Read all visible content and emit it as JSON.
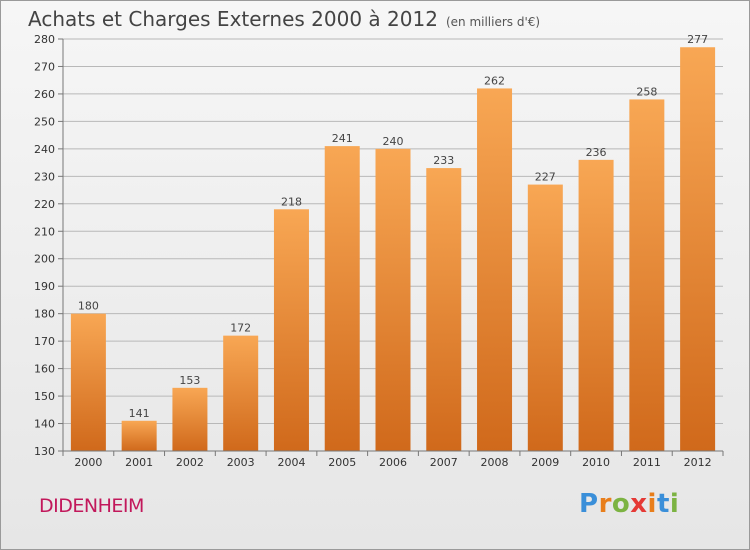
{
  "header": {
    "title": "Achats et Charges Externes 2000 à 2012",
    "subtitle": "(en milliers d'€)"
  },
  "footer": {
    "location": "DIDENHEIM",
    "logo_text": "Proxiti"
  },
  "colors": {
    "bar_light": "#f8a754",
    "bar_dark": "#d0691b",
    "grid": "#b8b8b8",
    "location": "#c2185b"
  },
  "chart_data": {
    "type": "bar",
    "title": "Achats et Charges Externes 2000 à 2012",
    "subtitle": "(en milliers d'€)",
    "xlabel": "",
    "ylabel": "",
    "categories": [
      "2000",
      "2001",
      "2002",
      "2003",
      "2004",
      "2005",
      "2006",
      "2007",
      "2008",
      "2009",
      "2010",
      "2011",
      "2012"
    ],
    "values": [
      180,
      141,
      153,
      172,
      218,
      241,
      240,
      233,
      262,
      227,
      236,
      258,
      277
    ],
    "ylim": [
      130,
      280
    ],
    "ytick_step": 10,
    "grid": true,
    "legend": "none"
  }
}
